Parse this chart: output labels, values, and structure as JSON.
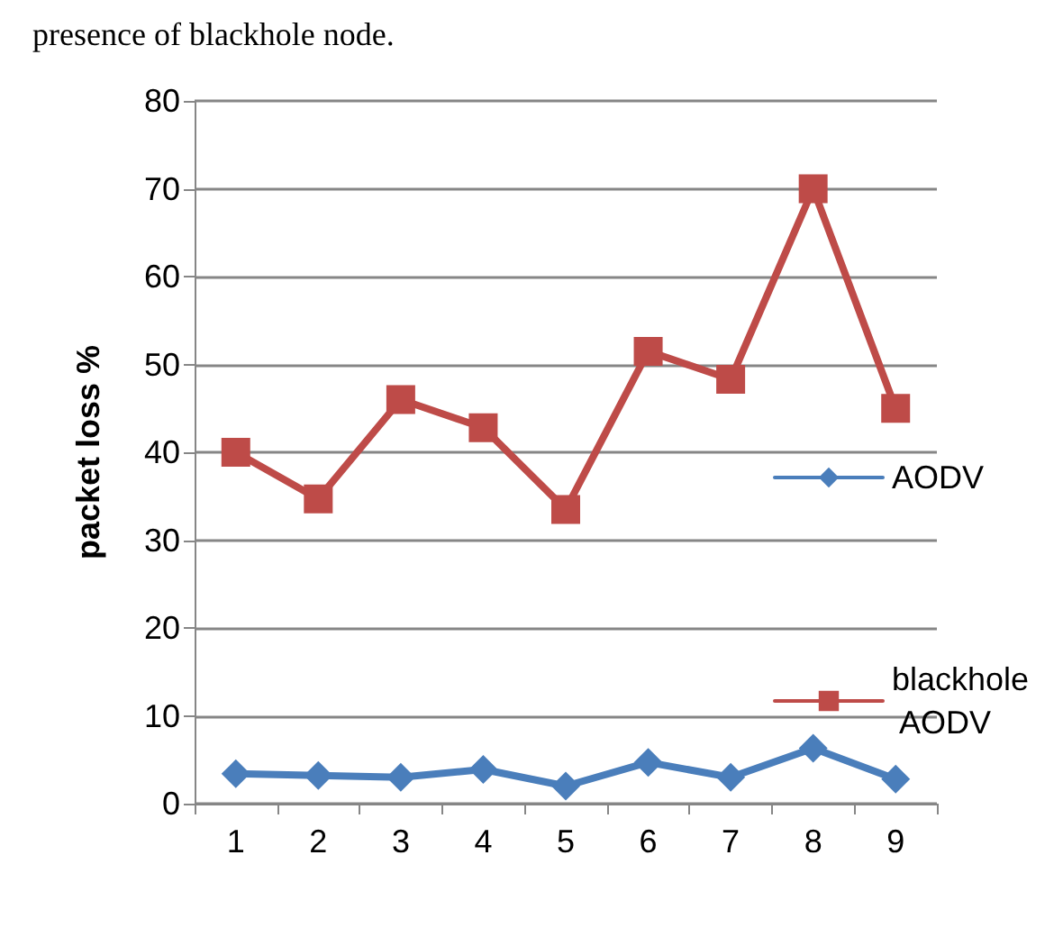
{
  "chart_data": {
    "type": "line",
    "annotations": [
      "presence of blackhole node."
    ],
    "ylabel": "packet loss %",
    "categories": [
      "1",
      "2",
      "3",
      "4",
      "5",
      "6",
      "7",
      "8",
      "9"
    ],
    "series": [
      {
        "name": "AODV",
        "color": "#4a7ebb",
        "marker": "diamond",
        "values": [
          3.4,
          3.2,
          3.0,
          3.9,
          2.0,
          4.7,
          3.0,
          6.3,
          2.8
        ]
      },
      {
        "name": "blackhole AODV",
        "color": "#be4b48",
        "marker": "square",
        "values": [
          40,
          34.7,
          46,
          42.8,
          33.5,
          51.5,
          48.3,
          70,
          45
        ]
      }
    ],
    "ylim": [
      0,
      80
    ],
    "yticks": [
      0,
      10,
      20,
      30,
      40,
      50,
      60,
      70,
      80
    ],
    "grid": "y",
    "legend": "right",
    "line_style": "solid"
  }
}
